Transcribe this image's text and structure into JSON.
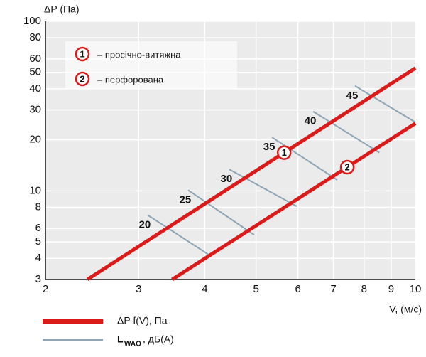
{
  "chart_data": {
    "type": "line",
    "x_label": "V, (м/с)",
    "y_label": "ΔP (Па)",
    "log_x": true,
    "log_y": true,
    "grid": true,
    "xlim": [
      2,
      10
    ],
    "xticks": [
      2,
      3,
      4,
      5,
      6,
      7,
      8,
      9,
      10
    ],
    "ylim": [
      3,
      100
    ],
    "yticks": [
      3,
      4,
      5,
      6,
      8,
      10,
      20,
      30,
      40,
      50,
      60,
      80,
      100
    ],
    "pressure_color": "#dd1a1a",
    "noise_color": "#8ea5b5",
    "pressure_lines": [
      {
        "label": "1",
        "x": [
          2.4,
          10
        ],
        "values": [
          3,
          53
        ]
      },
      {
        "label": "2",
        "x": [
          3.47,
          10
        ],
        "values": [
          3,
          25
        ]
      }
    ],
    "noise_lines": [
      {
        "label": "20",
        "x": [
          3.12,
          4.12
        ],
        "values": [
          7.2,
          4.1
        ]
      },
      {
        "label": "25",
        "x": [
          3.72,
          4.96
        ],
        "values": [
          10.1,
          5.5
        ]
      },
      {
        "label": "30",
        "x": [
          4.45,
          5.97
        ],
        "values": [
          13.4,
          8.1
        ]
      },
      {
        "label": "35",
        "x": [
          5.36,
          7.12
        ],
        "values": [
          20.7,
          11.6
        ]
      },
      {
        "label": "40",
        "x": [
          6.41,
          8.55
        ],
        "values": [
          29.4,
          16.8
        ]
      },
      {
        "label": "45",
        "x": [
          7.69,
          10
        ],
        "values": [
          41.6,
          25.4
        ]
      }
    ],
    "legend_box": [
      {
        "marker": "1",
        "text": "– просічно-витяжна"
      },
      {
        "marker": "2",
        "text": "– перфорована"
      }
    ],
    "legend": {
      "pressure": "ΔP f(V), Па",
      "noise_main": "L",
      "noise_sub": "WAO",
      "noise_rest": ", дБ(А)"
    }
  }
}
